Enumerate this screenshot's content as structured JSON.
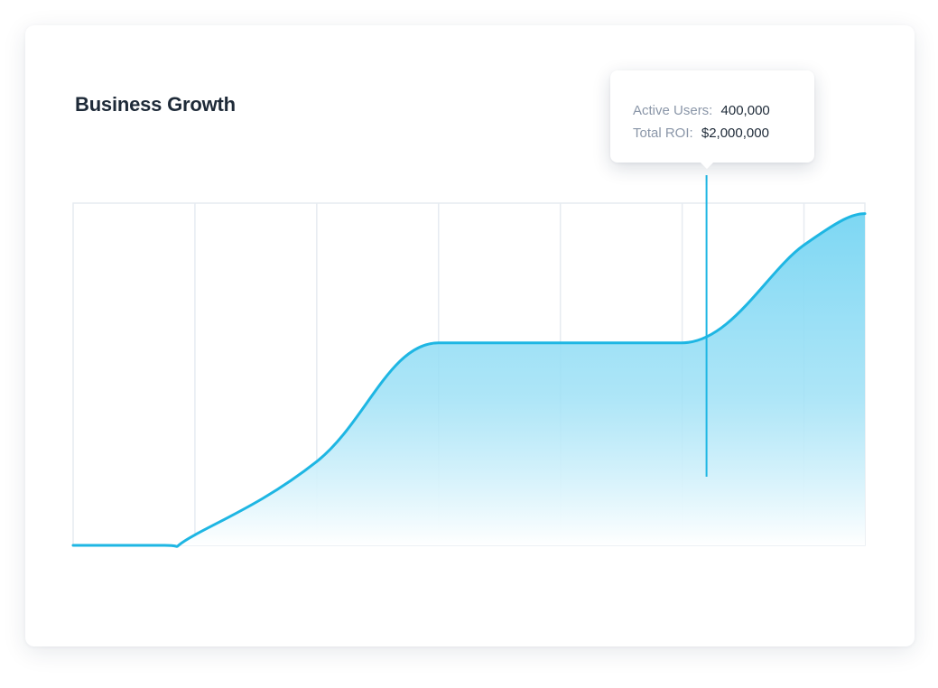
{
  "chart_data": {
    "type": "area",
    "title": "Business Growth",
    "xlabel": "",
    "ylabel": "",
    "x": [
      0,
      0.75,
      1,
      2,
      3,
      4,
      5,
      6,
      6.5
    ],
    "values": [
      0,
      0,
      0.15,
      1.2,
      2.9,
      2.9,
      2.9,
      4.3,
      4.75
    ],
    "xlim": [
      0,
      6.5
    ],
    "ylim": [
      0,
      4.9
    ],
    "grid": true,
    "legend": "none",
    "colors": {
      "line": "#1eb6e3",
      "fill_top": "#7dd7f3",
      "fill_bottom": "#ffffff",
      "grid": "#e6ebf1"
    },
    "tooltip": {
      "x": 5.2,
      "rows": [
        {
          "label": "Active Users:",
          "value": "400,000"
        },
        {
          "label": "Total ROI:",
          "value": "$2,000,000"
        }
      ]
    }
  }
}
